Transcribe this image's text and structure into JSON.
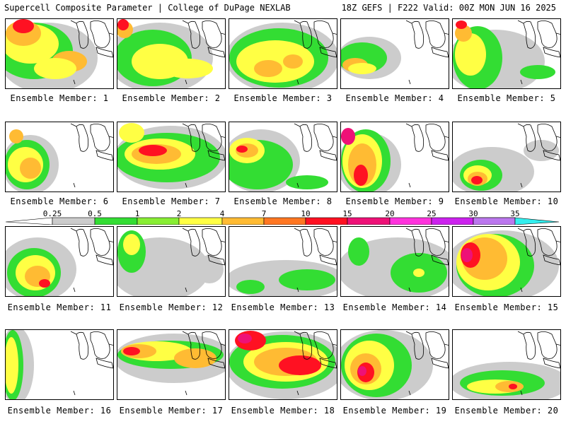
{
  "header": {
    "left": "Supercell Composite Parameter | College of DuPage NEXLAB",
    "right": "18Z GEFS | F222 Valid: 00Z MON JUN 16 2025"
  },
  "colorbar": {
    "labels": [
      "0.25",
      "0.5",
      "1",
      "2",
      "4",
      "7",
      "10",
      "15",
      "20",
      "25",
      "30",
      "35"
    ],
    "colors": [
      "#cccccc",
      "#33dd33",
      "#88ee33",
      "#ffff44",
      "#ffbb33",
      "#ff7722",
      "#ff1122",
      "#ee1177",
      "#ff33dd",
      "#cc22ee",
      "#8822dd",
      "#bb77ee",
      "#33eeee"
    ]
  },
  "members": [
    {
      "caption": "Ensemble Member: 1"
    },
    {
      "caption": "Ensemble Member: 2"
    },
    {
      "caption": "Ensemble Member: 3"
    },
    {
      "caption": "Ensemble Member: 4"
    },
    {
      "caption": "Ensemble Member: 5"
    },
    {
      "caption": "Ensemble Member: 6"
    },
    {
      "caption": "Ensemble Member: 7"
    },
    {
      "caption": "Ensemble Member: 8"
    },
    {
      "caption": "Ensemble Member: 9"
    },
    {
      "caption": "Ensemble Member: 10"
    },
    {
      "caption": "Ensemble Member: 11"
    },
    {
      "caption": "Ensemble Member: 12"
    },
    {
      "caption": "Ensemble Member: 13"
    },
    {
      "caption": "Ensemble Member: 14"
    },
    {
      "caption": "Ensemble Member: 15"
    },
    {
      "caption": "Ensemble Member: 16"
    },
    {
      "caption": "Ensemble Member: 17"
    },
    {
      "caption": "Ensemble Member: 18"
    },
    {
      "caption": "Ensemble Member: 19"
    },
    {
      "caption": "Ensemble Member: 20"
    }
  ]
}
